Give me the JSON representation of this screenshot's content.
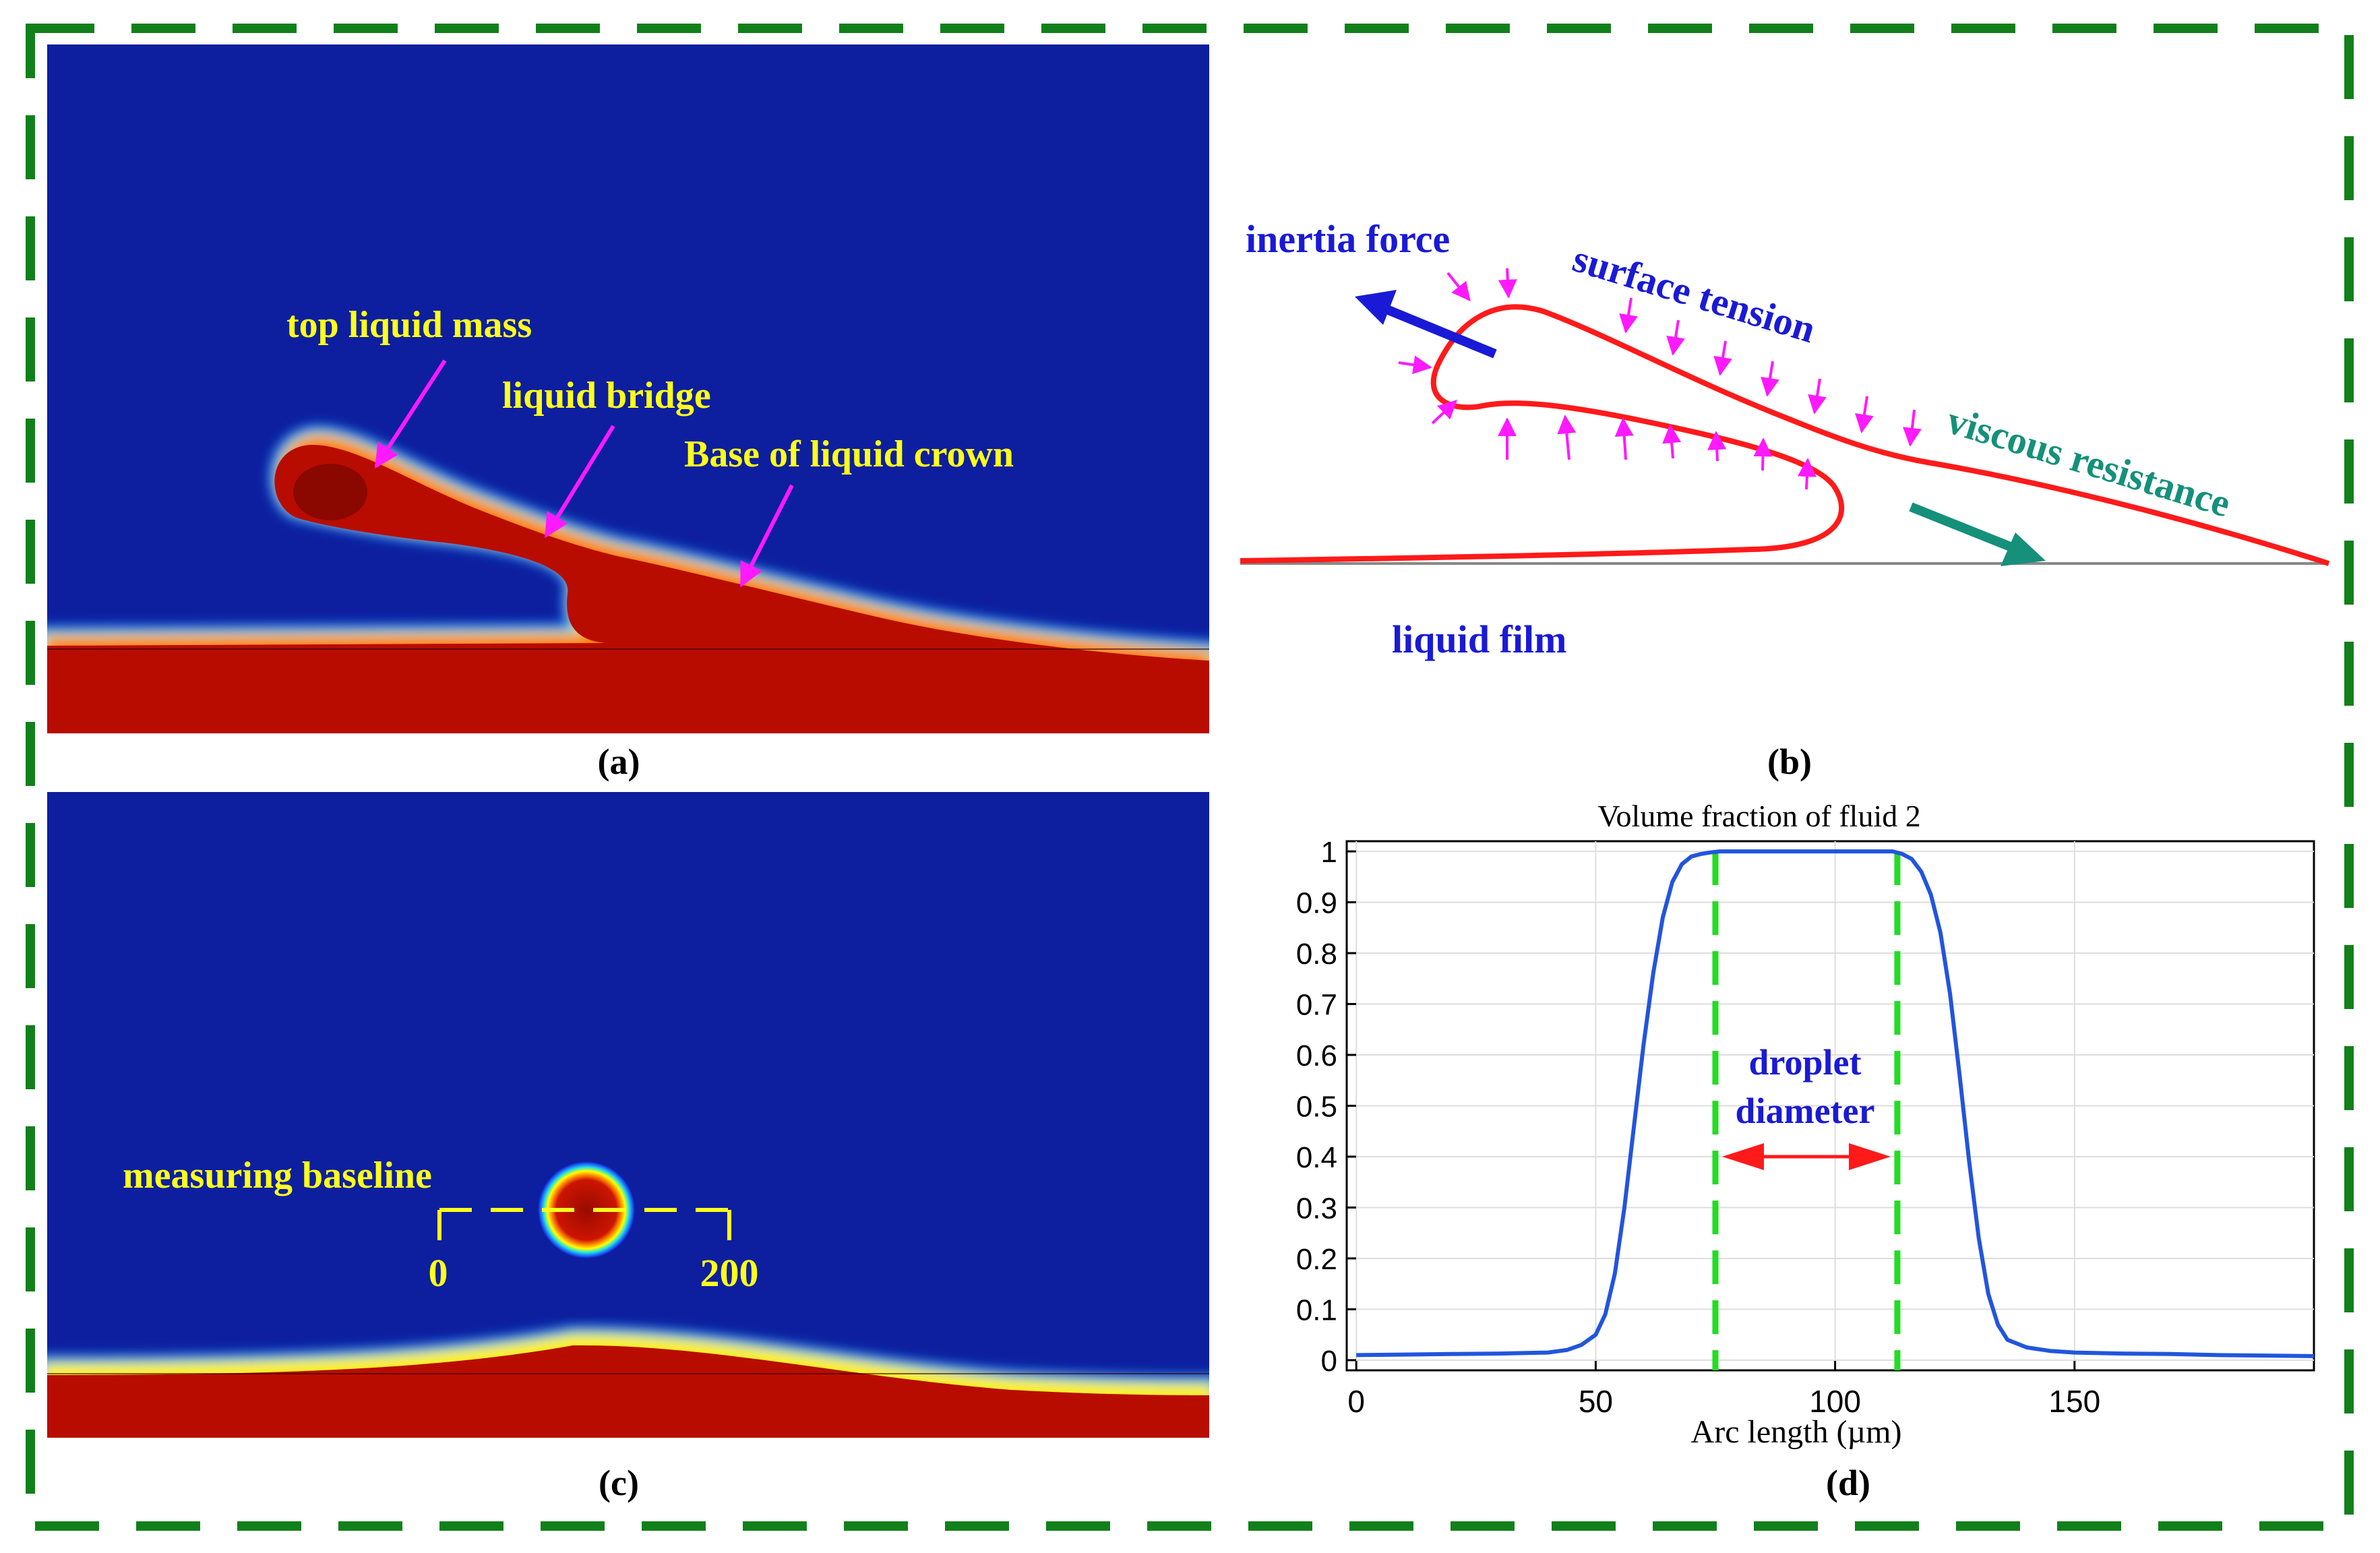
{
  "panels": {
    "a": {
      "caption": "(a)",
      "labels": {
        "top_liquid_mass": "top liquid mass",
        "liquid_bridge": "liquid bridge",
        "base_of_crown": "Base of liquid crown"
      }
    },
    "b": {
      "caption": "(b)",
      "labels": {
        "inertia_force": "inertia force",
        "surface_tension": "surface tension",
        "viscous_resistance": "viscous resistance",
        "liquid_film": "liquid film"
      }
    },
    "c": {
      "caption": "(c)",
      "labels": {
        "measuring_baseline": "measuring baseline",
        "baseline_start": "0",
        "baseline_end": "200"
      }
    },
    "d": {
      "caption": "(d)",
      "annotation_line1": "droplet",
      "annotation_line2": "diameter"
    }
  },
  "colors": {
    "frame": "#11801a",
    "field_blue": "#0d1f9e",
    "field_red": "#b80c00",
    "label_yellow": "#ffff1a",
    "arrow_magenta": "#ff19ff",
    "outline_red": "#ff1a1a",
    "series_blue": "#2255dd",
    "marker_green": "#22dd22"
  },
  "chart_data": {
    "type": "line",
    "title": "Volume fraction of fluid 2",
    "xlabel": "Arc length (µm)",
    "ylabel": "",
    "xlim": [
      -2,
      200
    ],
    "ylim": [
      -0.02,
      1.02
    ],
    "xticks": [
      0,
      50,
      100,
      150
    ],
    "xtick_labels": [
      "0",
      "50",
      "100",
      "150"
    ],
    "yticks": [
      0,
      0.1,
      0.2,
      0.3,
      0.4,
      0.5,
      0.6,
      0.7,
      0.8,
      0.9,
      1
    ],
    "ytick_labels": [
      "0",
      "0.1",
      "0.2",
      "0.3",
      "0.4",
      "0.5",
      "0.6",
      "0.7",
      "0.8",
      "0.9",
      "1"
    ],
    "grid": true,
    "series": [
      {
        "name": "Volume fraction of fluid 2",
        "x": [
          0,
          10,
          20,
          30,
          40,
          44,
          47,
          50,
          52,
          54,
          56,
          58,
          60,
          62,
          64,
          66,
          68,
          70,
          72,
          74,
          76,
          78,
          80,
          90,
          100,
          110,
          112,
          114,
          116,
          118,
          120,
          122,
          124,
          126,
          128,
          130,
          132,
          134,
          136,
          140,
          145,
          150,
          160,
          170,
          180,
          190,
          200
        ],
        "y": [
          0.01,
          0.011,
          0.012,
          0.013,
          0.015,
          0.02,
          0.03,
          0.05,
          0.09,
          0.17,
          0.3,
          0.46,
          0.62,
          0.76,
          0.87,
          0.94,
          0.975,
          0.99,
          0.995,
          0.998,
          1.0,
          1.0,
          1.0,
          1.0,
          1.0,
          1.0,
          1.0,
          0.995,
          0.985,
          0.96,
          0.915,
          0.84,
          0.72,
          0.56,
          0.39,
          0.24,
          0.13,
          0.07,
          0.04,
          0.025,
          0.018,
          0.015,
          0.013,
          0.012,
          0.01,
          0.009,
          0.008
        ]
      }
    ],
    "markers": [
      {
        "name": "droplet-start",
        "x": 75
      },
      {
        "name": "droplet-end",
        "x": 113
      }
    ]
  }
}
